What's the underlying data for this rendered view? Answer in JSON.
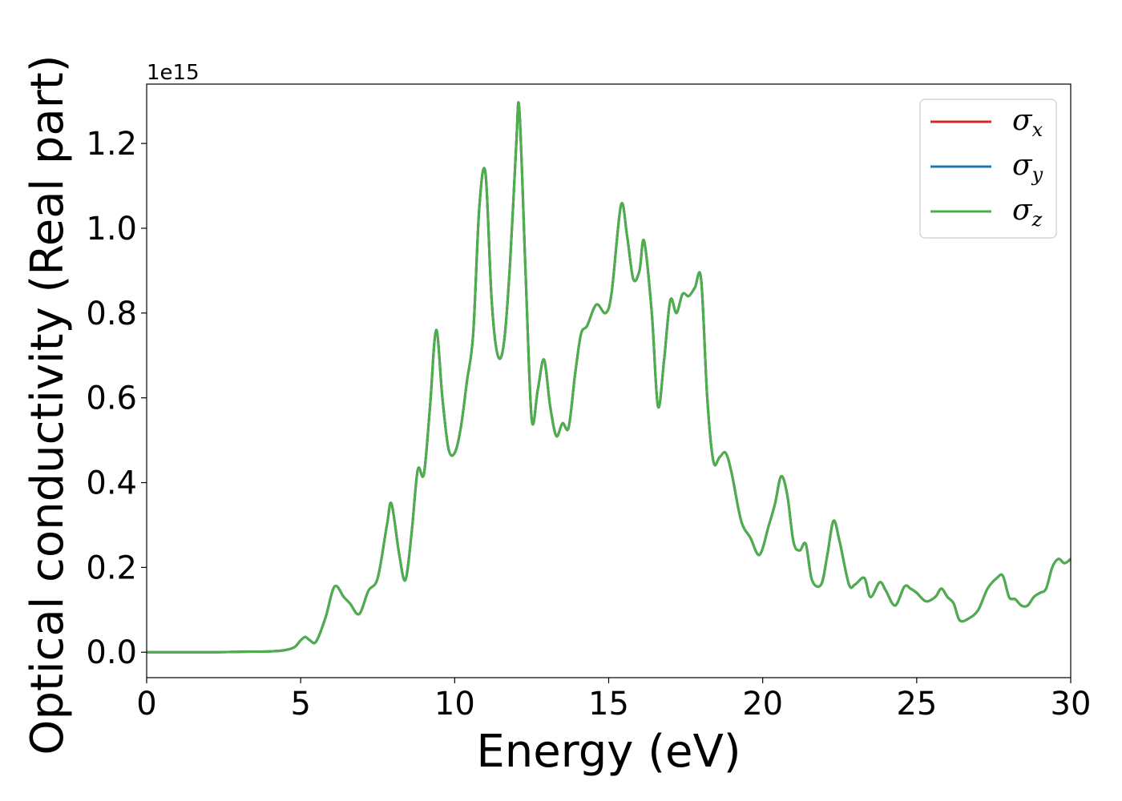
{
  "chart_data": {
    "type": "line",
    "title": "",
    "xlabel": "Energy (eV)",
    "ylabel": "Optical conductivity (Real part)",
    "y_offset_text": "1e15",
    "xlim": [
      0,
      30
    ],
    "ylim": [
      -0.06,
      1.34
    ],
    "x_ticks": [
      0,
      5,
      10,
      15,
      20,
      25,
      30
    ],
    "x_tick_labels": [
      "0",
      "5",
      "10",
      "15",
      "20",
      "25",
      "30"
    ],
    "y_ticks": [
      0.0,
      0.2,
      0.4,
      0.6,
      0.8,
      1.0,
      1.2
    ],
    "y_tick_labels": [
      "0.0",
      "0.2",
      "0.4",
      "0.6",
      "0.8",
      "1.0",
      "1.2"
    ],
    "grid": false,
    "legend_position": "top-right",
    "x": [
      0,
      1,
      2,
      3,
      4,
      4.5,
      4.8,
      5.0,
      5.15,
      5.3,
      5.5,
      5.8,
      6.1,
      6.4,
      6.6,
      6.9,
      7.2,
      7.5,
      7.8,
      7.95,
      8.2,
      8.4,
      8.6,
      8.8,
      9.0,
      9.2,
      9.4,
      9.6,
      9.8,
      10.0,
      10.2,
      10.4,
      10.6,
      10.8,
      11.0,
      11.2,
      11.4,
      11.6,
      11.8,
      12.0,
      12.1,
      12.3,
      12.5,
      12.7,
      12.9,
      13.1,
      13.3,
      13.5,
      13.7,
      13.9,
      14.1,
      14.3,
      14.6,
      14.9,
      15.1,
      15.4,
      15.6,
      15.8,
      16.0,
      16.15,
      16.4,
      16.6,
      16.8,
      17.0,
      17.2,
      17.4,
      17.6,
      17.8,
      18.0,
      18.2,
      18.4,
      18.6,
      18.8,
      19.0,
      19.3,
      19.6,
      19.9,
      20.2,
      20.4,
      20.6,
      20.8,
      21.0,
      21.2,
      21.4,
      21.6,
      21.9,
      22.1,
      22.3,
      22.5,
      22.8,
      23.0,
      23.3,
      23.5,
      23.8,
      24.0,
      24.3,
      24.6,
      24.8,
      25.0,
      25.3,
      25.6,
      25.8,
      26.0,
      26.2,
      26.4,
      26.7,
      27.0,
      27.3,
      27.6,
      27.8,
      28.0,
      28.2,
      28.4,
      28.6,
      28.8,
      29.0,
      29.2,
      29.4,
      29.6,
      29.8,
      30.0
    ],
    "series": [
      {
        "name": "σx",
        "color": "#d62728",
        "values": [
          0,
          0,
          0,
          0.001,
          0.002,
          0.005,
          0.012,
          0.028,
          0.036,
          0.028,
          0.025,
          0.08,
          0.155,
          0.13,
          0.115,
          0.09,
          0.145,
          0.175,
          0.3,
          0.35,
          0.23,
          0.17,
          0.28,
          0.43,
          0.42,
          0.58,
          0.76,
          0.6,
          0.48,
          0.47,
          0.53,
          0.64,
          0.75,
          1.05,
          1.13,
          0.83,
          0.7,
          0.73,
          0.92,
          1.2,
          1.28,
          0.9,
          0.55,
          0.62,
          0.69,
          0.58,
          0.51,
          0.54,
          0.53,
          0.65,
          0.75,
          0.77,
          0.82,
          0.8,
          0.85,
          1.055,
          0.98,
          0.88,
          0.9,
          0.97,
          0.8,
          0.58,
          0.69,
          0.83,
          0.8,
          0.845,
          0.84,
          0.86,
          0.88,
          0.6,
          0.45,
          0.46,
          0.47,
          0.42,
          0.31,
          0.27,
          0.23,
          0.3,
          0.35,
          0.415,
          0.37,
          0.26,
          0.24,
          0.255,
          0.17,
          0.16,
          0.23,
          0.31,
          0.26,
          0.16,
          0.16,
          0.175,
          0.13,
          0.165,
          0.145,
          0.11,
          0.155,
          0.15,
          0.14,
          0.12,
          0.13,
          0.15,
          0.13,
          0.115,
          0.075,
          0.08,
          0.1,
          0.15,
          0.175,
          0.18,
          0.13,
          0.125,
          0.11,
          0.11,
          0.13,
          0.14,
          0.15,
          0.2,
          0.22,
          0.21,
          0.22
        ]
      },
      {
        "name": "σy",
        "color": "#1f77b4",
        "values": [
          0,
          0,
          0,
          0.001,
          0.002,
          0.005,
          0.012,
          0.028,
          0.036,
          0.028,
          0.025,
          0.08,
          0.155,
          0.13,
          0.115,
          0.09,
          0.145,
          0.175,
          0.3,
          0.35,
          0.23,
          0.17,
          0.28,
          0.43,
          0.42,
          0.58,
          0.76,
          0.6,
          0.48,
          0.47,
          0.53,
          0.64,
          0.75,
          1.05,
          1.13,
          0.83,
          0.7,
          0.73,
          0.92,
          1.2,
          1.28,
          0.9,
          0.55,
          0.62,
          0.69,
          0.58,
          0.51,
          0.54,
          0.53,
          0.65,
          0.75,
          0.77,
          0.82,
          0.8,
          0.85,
          1.055,
          0.98,
          0.88,
          0.9,
          0.97,
          0.8,
          0.58,
          0.69,
          0.83,
          0.8,
          0.845,
          0.84,
          0.86,
          0.88,
          0.6,
          0.45,
          0.46,
          0.47,
          0.42,
          0.31,
          0.27,
          0.23,
          0.3,
          0.35,
          0.415,
          0.37,
          0.26,
          0.24,
          0.255,
          0.17,
          0.16,
          0.23,
          0.31,
          0.26,
          0.16,
          0.16,
          0.175,
          0.13,
          0.165,
          0.145,
          0.11,
          0.155,
          0.15,
          0.14,
          0.12,
          0.13,
          0.15,
          0.13,
          0.115,
          0.075,
          0.08,
          0.1,
          0.15,
          0.175,
          0.18,
          0.13,
          0.125,
          0.11,
          0.11,
          0.13,
          0.14,
          0.15,
          0.2,
          0.22,
          0.21,
          0.22
        ]
      },
      {
        "name": "σz",
        "color": "#4daf4a",
        "values": [
          0,
          0,
          0,
          0.001,
          0.002,
          0.005,
          0.012,
          0.028,
          0.036,
          0.028,
          0.025,
          0.08,
          0.155,
          0.13,
          0.115,
          0.09,
          0.145,
          0.175,
          0.3,
          0.35,
          0.23,
          0.17,
          0.28,
          0.43,
          0.42,
          0.58,
          0.76,
          0.6,
          0.48,
          0.47,
          0.53,
          0.64,
          0.75,
          1.05,
          1.13,
          0.83,
          0.7,
          0.73,
          0.92,
          1.2,
          1.28,
          0.9,
          0.55,
          0.62,
          0.69,
          0.58,
          0.51,
          0.54,
          0.53,
          0.65,
          0.75,
          0.77,
          0.82,
          0.8,
          0.85,
          1.055,
          0.98,
          0.88,
          0.9,
          0.97,
          0.8,
          0.58,
          0.69,
          0.83,
          0.8,
          0.845,
          0.84,
          0.86,
          0.88,
          0.6,
          0.45,
          0.46,
          0.47,
          0.42,
          0.31,
          0.27,
          0.23,
          0.3,
          0.35,
          0.415,
          0.37,
          0.26,
          0.24,
          0.255,
          0.17,
          0.16,
          0.23,
          0.31,
          0.26,
          0.16,
          0.16,
          0.175,
          0.13,
          0.165,
          0.145,
          0.11,
          0.155,
          0.15,
          0.14,
          0.12,
          0.13,
          0.15,
          0.13,
          0.115,
          0.075,
          0.08,
          0.1,
          0.15,
          0.175,
          0.18,
          0.13,
          0.125,
          0.11,
          0.11,
          0.13,
          0.14,
          0.15,
          0.2,
          0.22,
          0.21,
          0.22
        ]
      }
    ],
    "legend": [
      {
        "symbol": "σ",
        "sub": "x",
        "color": "#d62728"
      },
      {
        "symbol": "σ",
        "sub": "y",
        "color": "#1f77b4"
      },
      {
        "symbol": "σ",
        "sub": "z",
        "color": "#4daf4a"
      }
    ]
  }
}
